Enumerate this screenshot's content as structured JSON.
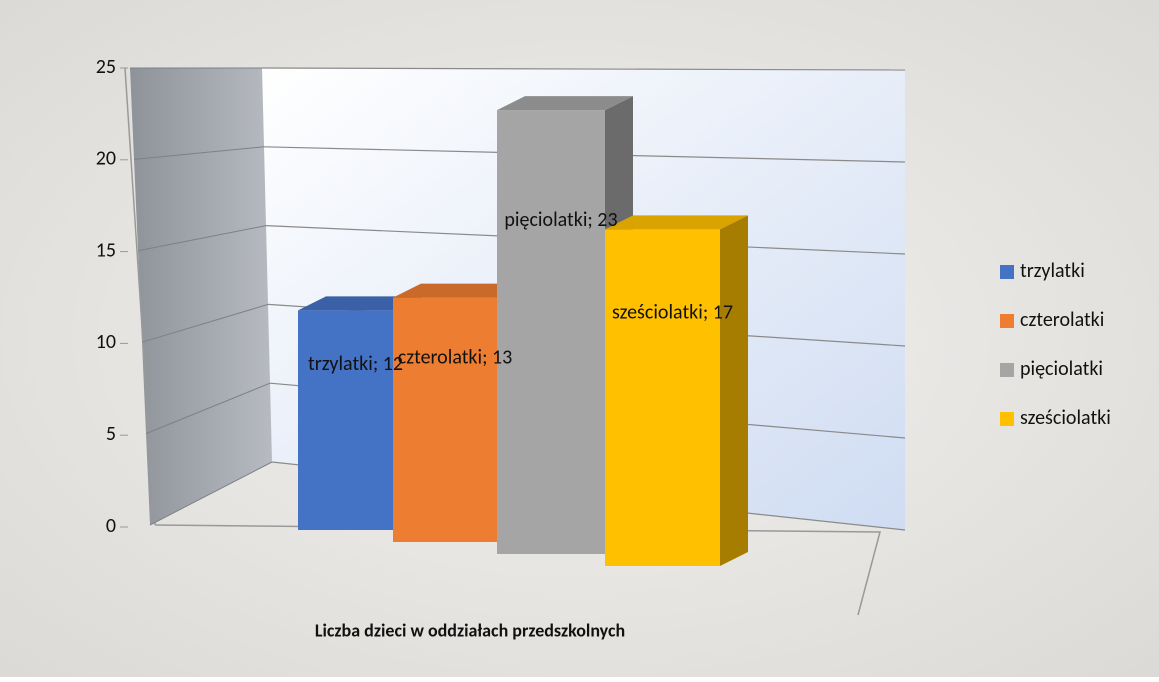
{
  "chart_data": {
    "type": "bar",
    "categories": [
      "Liczba dzieci w oddziałach przedszkolnych"
    ],
    "series": [
      {
        "name": "trzylatki",
        "color": "#4472c4",
        "values": [
          12
        ],
        "value_labels": [
          "trzylatki; 12"
        ]
      },
      {
        "name": "czterolatki",
        "color": "#ed7d31",
        "values": [
          13
        ],
        "value_labels": [
          "czterolatki; 13"
        ]
      },
      {
        "name": "pięciolatki",
        "color": "#a5a5a5",
        "values": [
          23
        ],
        "value_labels": [
          "pięciolatki; 23"
        ]
      },
      {
        "name": "sześciolatki",
        "color": "#ffc000",
        "values": [
          17
        ],
        "value_labels": [
          "sześciolatki; 17"
        ]
      }
    ],
    "ylim": [
      0,
      25
    ],
    "yticks": [
      0,
      5,
      10,
      15,
      20,
      25
    ],
    "grid": true,
    "legend": "right"
  }
}
